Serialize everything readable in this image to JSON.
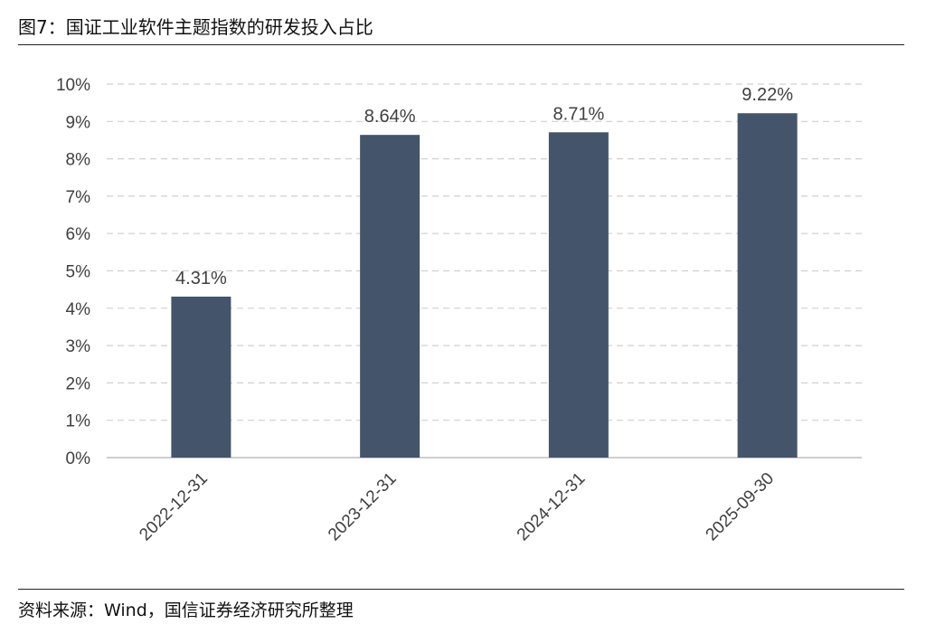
{
  "figure": {
    "title": "图7：国证工业软件主题指数的研发投入占比",
    "source": "资料来源：Wind，国信证券经济研究所整理"
  },
  "colors": {
    "bar": "#44546A",
    "grid": "#D0D0D0",
    "axis": "#BFBFBF",
    "text": "#404040"
  },
  "chart_data": {
    "type": "bar",
    "categories": [
      "2022-12-31",
      "2023-12-31",
      "2024-12-31",
      "2025-09-30"
    ],
    "values": [
      4.31,
      8.64,
      8.71,
      9.22
    ],
    "data_labels": [
      "4.31%",
      "8.64%",
      "8.71%",
      "9.22%"
    ],
    "ylim": [
      0,
      10
    ],
    "yticks": [
      0,
      1,
      2,
      3,
      4,
      5,
      6,
      7,
      8,
      9,
      10
    ],
    "ytick_labels": [
      "0%",
      "1%",
      "2%",
      "3%",
      "4%",
      "5%",
      "6%",
      "7%",
      "8%",
      "9%",
      "10%"
    ],
    "grid": "horizontal-dashed",
    "legend": "none"
  }
}
